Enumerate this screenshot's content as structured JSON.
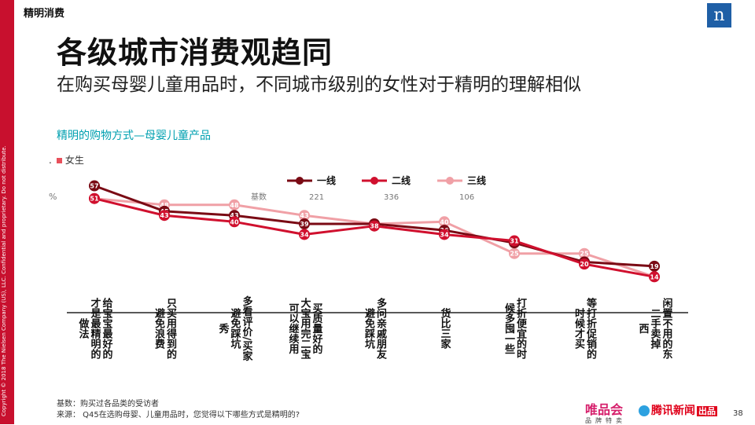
{
  "header": {
    "section": "精明消费",
    "logo": "n"
  },
  "copyright": "Copyright © 2018 The Nielsen Company (US), LLC. Confidential and proprietary. Do not distribute.",
  "title": "各级城市消费观趋同",
  "subtitle": "在购买母婴儿童用品时，不同城市级别的女性对于精明的理解相似",
  "chart_title": "精明的购物方式—母婴儿童产品",
  "gender": {
    "dot": ".",
    "label": "女生"
  },
  "chart_data": {
    "type": "line",
    "y_unit": "%",
    "base_label": "基数",
    "categories": [
      [
        "做法",
        "才是最精明的",
        "给宝宝最好的"
      ],
      [
        "避免浪费",
        "只买用得到的"
      ],
      [
        "秀",
        "避免踩坑",
        "多看评价/买家"
      ],
      [
        "可以继续用",
        "大宝用完二宝",
        "买质量好的"
      ],
      [
        "避免踩坑",
        "多问亲戚朋友"
      ],
      [
        "货比三家"
      ],
      [
        "候多囤一些",
        "打折便宜的时"
      ],
      [
        "时候才买",
        "等打折促销的"
      ],
      [
        "西",
        "二手卖掉",
        "闲置不用的东"
      ]
    ],
    "series": [
      {
        "name": "一线",
        "base": "221",
        "color": "#7a0a14",
        "values": [
          57,
          45,
          43,
          39,
          39,
          36,
          30,
          21,
          19
        ]
      },
      {
        "name": "二线",
        "base": "336",
        "color": "#d0102e",
        "values": [
          51,
          43,
          40,
          34,
          38,
          34,
          31,
          20,
          14
        ]
      },
      {
        "name": "三线",
        "base": "106",
        "color": "#f0a0a6",
        "values": [
          51,
          48,
          48,
          43,
          39,
          40,
          25,
          25,
          14
        ]
      }
    ],
    "ylim": [
      0,
      65
    ],
    "grid": false
  },
  "footer": {
    "base": "基数：购买过各品类的受访者",
    "source": "来源：  Q45在选购母婴、儿童用品时，您觉得以下哪些方式是精明的?"
  },
  "brands": {
    "vip": "唯品会",
    "vip_sub": "品牌特卖",
    "tencent": "腾讯新闻",
    "tencent_tag": "出品"
  },
  "page_number": "38"
}
